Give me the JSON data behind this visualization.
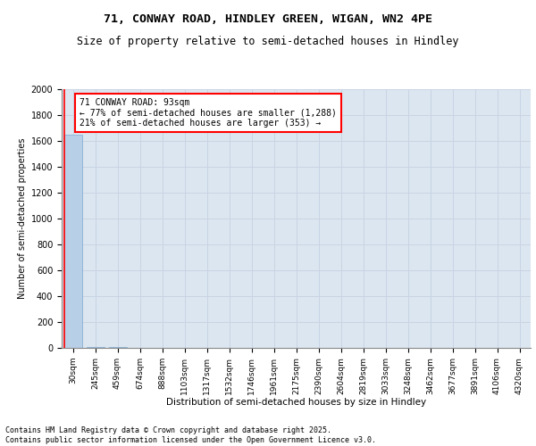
{
  "title_line1": "71, CONWAY ROAD, HINDLEY GREEN, WIGAN, WN2 4PE",
  "title_line2": "Size of property relative to semi-detached houses in Hindley",
  "xlabel": "Distribution of semi-detached houses by size in Hindley",
  "ylabel": "Number of semi-detached properties",
  "categories": [
    "30sqm",
    "245sqm",
    "459sqm",
    "674sqm",
    "888sqm",
    "1103sqm",
    "1317sqm",
    "1532sqm",
    "1746sqm",
    "1961sqm",
    "2175sqm",
    "2390sqm",
    "2604sqm",
    "2819sqm",
    "3033sqm",
    "3248sqm",
    "3462sqm",
    "3677sqm",
    "3891sqm",
    "4106sqm",
    "4320sqm"
  ],
  "values": [
    1650,
    8,
    4,
    2,
    2,
    1,
    1,
    1,
    1,
    1,
    1,
    1,
    0,
    0,
    0,
    0,
    0,
    0,
    0,
    0,
    0
  ],
  "bar_color": "#b8cfe8",
  "bar_edge_color": "#7aaad0",
  "annotation_box_text": "71 CONWAY ROAD: 93sqm\n← 77% of semi-detached houses are smaller (1,288)\n21% of semi-detached houses are larger (353) →",
  "annotation_box_edgecolor": "red",
  "annotation_box_facecolor": "white",
  "ylim": [
    0,
    2000
  ],
  "yticks": [
    0,
    200,
    400,
    600,
    800,
    1000,
    1200,
    1400,
    1600,
    1800,
    2000
  ],
  "grid_color": "#c8d4e4",
  "background_color": "#dce6f0",
  "footer_text": "Contains HM Land Registry data © Crown copyright and database right 2025.\nContains public sector information licensed under the Open Government Licence v3.0.",
  "title_fontsize": 9.5,
  "subtitle_fontsize": 8.5,
  "annotation_fontsize": 7,
  "footer_fontsize": 6,
  "ylabel_fontsize": 7,
  "xlabel_fontsize": 7.5,
  "tick_fontsize": 6.5,
  "ytick_fontsize": 7
}
